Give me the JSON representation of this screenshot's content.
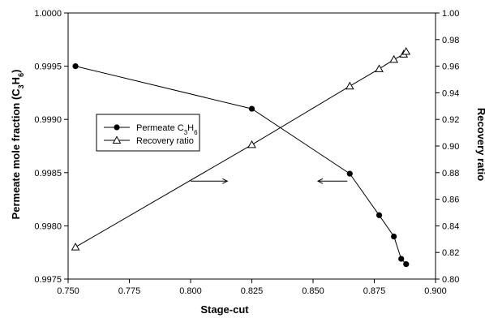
{
  "chart_data": {
    "type": "scatter",
    "xlabel": "Stage-cut",
    "ylabel_left_pre": "Permeate mole fraction (C",
    "ylabel_left_sub1": "3",
    "ylabel_left_mid": "H",
    "ylabel_left_sub2": "6",
    "ylabel_left_post": ")",
    "ylabel_right": "Recovery ratio",
    "xlim": [
      0.75,
      0.9
    ],
    "ylim_left": [
      0.9975,
      1.0
    ],
    "ylim_right": [
      0.8,
      1.0
    ],
    "x_ticks": [
      "0.750",
      "0.775",
      "0.800",
      "0.825",
      "0.850",
      "0.875",
      "0.900"
    ],
    "y_left_ticks": [
      "0.9975",
      "0.9980",
      "0.9985",
      "0.9990",
      "0.9995",
      "1.0000"
    ],
    "y_right_ticks": [
      "0.80",
      "0.82",
      "0.84",
      "0.86",
      "0.88",
      "0.90",
      "0.92",
      "0.94",
      "0.96",
      "0.98",
      "1.00"
    ],
    "legend": {
      "position": "center-left",
      "entries": [
        {
          "pre": "Permeate C",
          "sub1": "3",
          "mid": "H",
          "sub2": "6",
          "marker": "filled-circle"
        },
        {
          "pre": "Recovery ratio",
          "marker": "open-triangle"
        }
      ]
    },
    "series": [
      {
        "name": "Permeate C3H6",
        "axis": "left",
        "marker": "filled-circle",
        "x": [
          0.753,
          0.825,
          0.865,
          0.877,
          0.883,
          0.886,
          0.888
        ],
        "y": [
          0.9995,
          0.9991,
          0.99849,
          0.9981,
          0.9979,
          0.99769,
          0.99764
        ]
      },
      {
        "name": "Recovery ratio",
        "axis": "right",
        "marker": "open-triangle",
        "x": [
          0.753,
          0.825,
          0.865,
          0.877,
          0.883,
          0.887,
          0.888
        ],
        "y": [
          0.824,
          0.901,
          0.945,
          0.958,
          0.965,
          0.969,
          0.971
        ]
      }
    ],
    "annotations": [
      {
        "type": "arrow",
        "direction": "left-axis",
        "y_axis": "left",
        "x_from": 0.8,
        "x_to": 0.815,
        "y": 0.99842
      },
      {
        "type": "arrow",
        "direction": "right-axis",
        "y_axis": "left",
        "x_from": 0.864,
        "x_to": 0.852,
        "y": 0.99842
      }
    ]
  }
}
